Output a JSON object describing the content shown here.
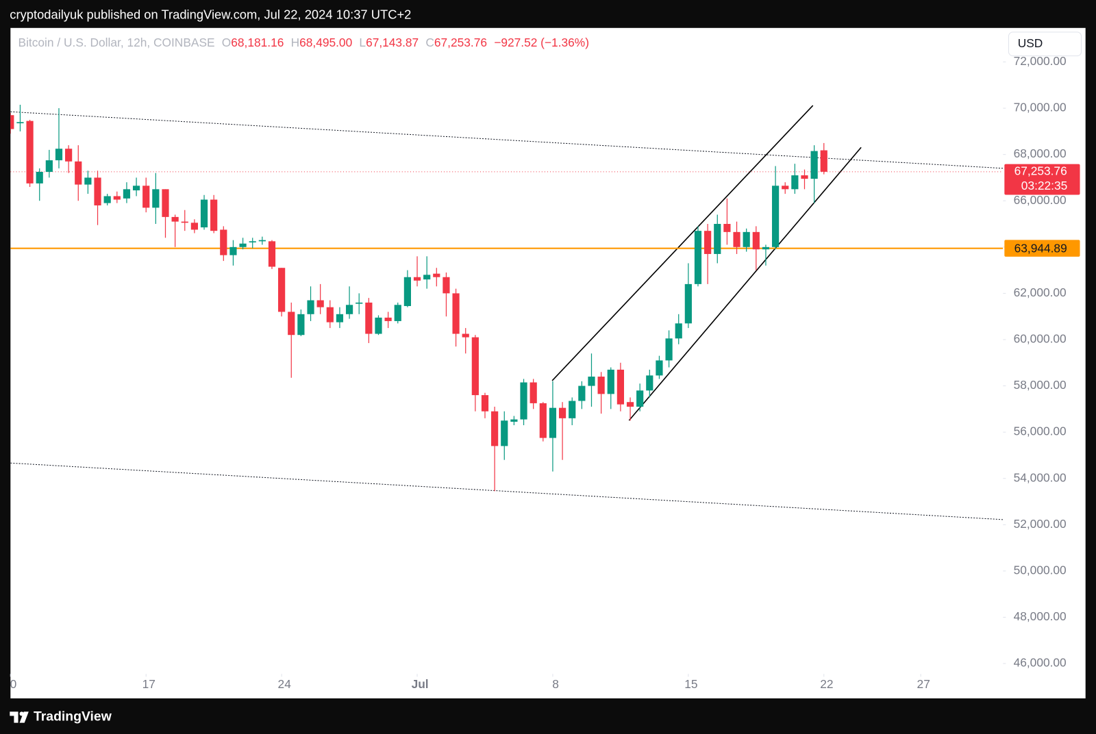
{
  "publisher": "cryptodailyuk published on TradingView.com, Jul 22, 2024 10:37 UTC+2",
  "brand": "TradingView",
  "currency": "USD",
  "chart_data": {
    "type": "candlestick",
    "title": "Bitcoin / U.S. Dollar, 12h, COINBASE",
    "ohlc_header": [
      {
        "key": "O",
        "value": "68,181.16"
      },
      {
        "key": "H",
        "value": "68,495.00"
      },
      {
        "key": "L",
        "value": "67,143.87"
      },
      {
        "key": "C",
        "value": "67,253.76"
      }
    ],
    "change": "−927.52 (−1.36%)",
    "up_color": "#089981",
    "down_color": "#f23645",
    "open": [
      69700,
      69350,
      69450,
      66750,
      67250,
      67750,
      68250,
      67700,
      66700,
      67000,
      65900,
      66200,
      66100,
      66450,
      66650,
      65700,
      66500,
      65300,
      65100,
      65050,
      64850,
      66050,
      64750,
      63650,
      64000,
      64200,
      64250,
      64250,
      63100,
      61200,
      60200,
      61100,
      61700,
      61400,
      60750,
      61100,
      61550,
      61600,
      60250,
      60950,
      60800,
      61450,
      62700,
      62600,
      62850,
      62700,
      62000,
      60250,
      60100,
      57600,
      56900,
      55400,
      56450,
      56550,
      58150,
      57250,
      55750,
      57050,
      56600,
      57350,
      58000,
      58400,
      57650,
      58700,
      57300,
      57100,
      57800,
      58450,
      59100,
      60050,
      60700,
      62400,
      64700,
      63700,
      65000,
      64650,
      64000,
      64650,
      63900,
      64000,
      66650,
      66500,
      67100,
      66950,
      68181.16
    ],
    "high": [
      69800,
      70150,
      69500,
      67400,
      68200,
      70000,
      68400,
      68400,
      67300,
      67300,
      66300,
      66400,
      66800,
      67000,
      67000,
      67200,
      66500,
      65400,
      65600,
      65200,
      66250,
      66250,
      64900,
      64300,
      64400,
      64400,
      64450,
      64300,
      63100,
      61600,
      61300,
      62300,
      62400,
      61700,
      61400,
      62300,
      62000,
      61800,
      61050,
      61200,
      61600,
      63000,
      63600,
      63600,
      63100,
      62900,
      62200,
      60500,
      60200,
      57700,
      57100,
      56900,
      56700,
      58300,
      58300,
      57300,
      58200,
      57300,
      57500,
      58200,
      59400,
      58600,
      58800,
      59000,
      57500,
      58100,
      58700,
      59300,
      60400,
      61100,
      63300,
      64900,
      65000,
      65400,
      66100,
      65100,
      64800,
      64900,
      64100,
      67500,
      66800,
      67600,
      67350,
      68400,
      68495
    ],
    "low": [
      68900,
      69000,
      66600,
      66000,
      67000,
      67400,
      67200,
      66000,
      66300,
      64950,
      65800,
      65900,
      65900,
      66200,
      65500,
      65000,
      64400,
      64000,
      64700,
      64600,
      64750,
      64600,
      63400,
      63200,
      63900,
      63950,
      64100,
      63050,
      61000,
      58350,
      60150,
      60800,
      61100,
      60500,
      60500,
      60900,
      61100,
      59850,
      60200,
      60500,
      60700,
      61400,
      62300,
      62200,
      62300,
      61000,
      59700,
      59400,
      56900,
      56600,
      53450,
      54800,
      56300,
      56300,
      57000,
      55600,
      54300,
      54800,
      56300,
      57000,
      57100,
      56800,
      57000,
      56900,
      56500,
      56900,
      57500,
      58300,
      58800,
      59800,
      60500,
      62300,
      62400,
      63300,
      64100,
      63700,
      63800,
      63000,
      63200,
      63900,
      66300,
      66300,
      66500,
      65900,
      67143.87
    ],
    "close": [
      69100,
      69400,
      66750,
      67250,
      67750,
      68250,
      67700,
      66700,
      67000,
      65800,
      66200,
      66050,
      66500,
      66650,
      65700,
      66500,
      65300,
      65100,
      65050,
      64750,
      66050,
      64700,
      63650,
      64000,
      64150,
      64250,
      64300,
      63150,
      61200,
      60200,
      61100,
      61700,
      61400,
      60750,
      61100,
      61500,
      61600,
      60250,
      60950,
      60800,
      61500,
      62700,
      62550,
      62800,
      62700,
      62000,
      60250,
      60100,
      57600,
      56900,
      55400,
      56500,
      56550,
      58150,
      57250,
      55750,
      57050,
      56600,
      57350,
      58000,
      58400,
      57650,
      58700,
      57200,
      57100,
      57800,
      58450,
      59100,
      60050,
      60700,
      62400,
      64700,
      63700,
      65000,
      64650,
      64000,
      64650,
      63900,
      64000,
      66650,
      66500,
      67100,
      66950,
      68150,
      67253.76
    ],
    "xlim": [
      0,
      102.5
    ],
    "xticks": [
      0,
      {
        "value": 14,
        "label": "17"
      },
      {
        "value": 28,
        "label": "24"
      },
      {
        "value": 42,
        "label": "Jul"
      },
      {
        "value": 56,
        "label": "8"
      },
      {
        "value": 70,
        "label": "15"
      },
      {
        "value": 84,
        "label": "22"
      },
      {
        "value": 94,
        "label": "27"
      }
    ],
    "ylim": [
      45550,
      73470
    ],
    "yticks": [
      {
        "value": 46000,
        "label": "46,000.00"
      },
      {
        "value": 48000,
        "label": "48,000.00"
      },
      {
        "value": 50000,
        "label": "50,000.00"
      },
      {
        "value": 52000,
        "label": "52,000.00"
      },
      {
        "value": 54000,
        "label": "54,000.00"
      },
      {
        "value": 56000,
        "label": "56,000.00"
      },
      {
        "value": 58000,
        "label": "58,000.00"
      },
      {
        "value": 60000,
        "label": "60,000.00"
      },
      {
        "value": 62000,
        "label": "62,000.00"
      },
      {
        "value": 64000,
        "label": "64,000.00"
      },
      {
        "value": 66000,
        "label": "66,000.00"
      },
      {
        "value": 68000,
        "label": "68,000.00"
      },
      {
        "value": 70000,
        "label": "70,000.00"
      },
      {
        "value": 72000,
        "label": "72,000.00"
      }
    ],
    "last_price": {
      "value": 67253.76,
      "label": "67,253.76",
      "countdown": "03:22:35"
    },
    "horizontal_line": {
      "value": 63944.89,
      "label": "63,944.89",
      "color": "#ff9800"
    }
  }
}
